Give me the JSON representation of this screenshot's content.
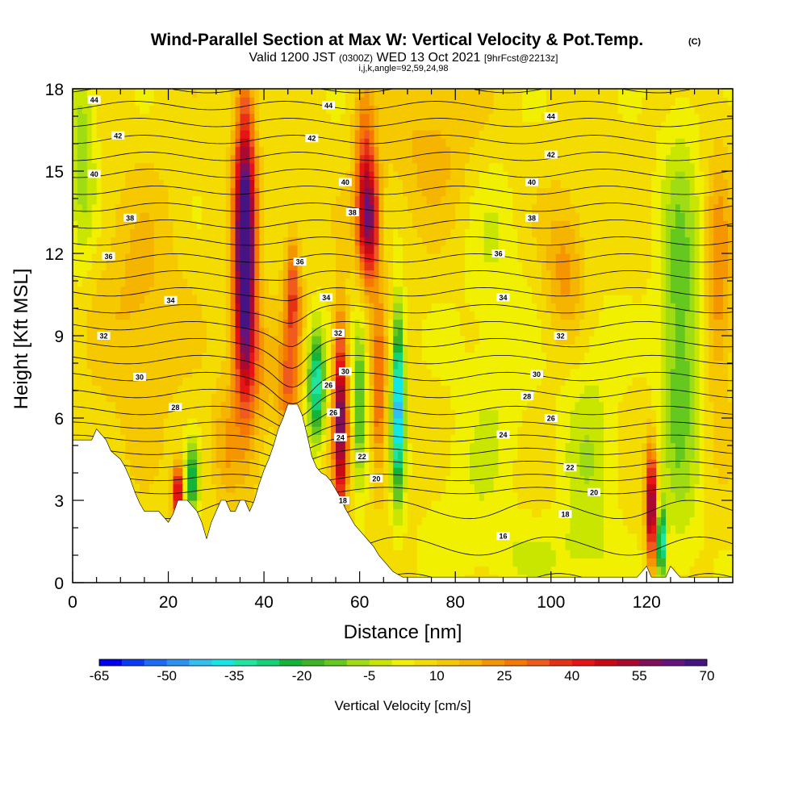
{
  "title": "Wind-Parallel Section at Max W: Vertical Velocity & Pot.Temp.",
  "copyright": "(C)",
  "subtitle": {
    "valid": "Valid 1200 JST",
    "zulu": "(0300Z)",
    "date": "WED 13 Oct 2021",
    "forecast": "[9hrFcst@2213z]",
    "params": "i,j,k,angle=92,59,24,98"
  },
  "chart_data": {
    "type": "heatmap",
    "xlabel": "Distance [nm]",
    "ylabel": "Height [Kft MSL]",
    "xlim": [
      0,
      138
    ],
    "ylim": [
      0,
      18
    ],
    "x_ticks": [
      "0",
      "20",
      "40",
      "60",
      "80",
      "100",
      "120"
    ],
    "y_ticks": [
      "0",
      "3",
      "6",
      "9",
      "12",
      "15",
      "18"
    ],
    "colorbar": {
      "label": "Vertical Velocity [cm/s]",
      "min": -65,
      "max": 70,
      "step": 5,
      "tick_labels": [
        "-65",
        "-50",
        "-35",
        "-20",
        "-5",
        "10",
        "25",
        "40",
        "55",
        "70"
      ],
      "colors": [
        "#0000f0",
        "#0a3cf5",
        "#1e6cf5",
        "#2c94f0",
        "#32c0f0",
        "#14e6e6",
        "#1ee6a0",
        "#14d278",
        "#14b43c",
        "#3cb428",
        "#64c81e",
        "#a0dc14",
        "#c8e600",
        "#f0f000",
        "#f5dc00",
        "#f5c800",
        "#f5b400",
        "#f59600",
        "#f57800",
        "#f05a1e",
        "#e63214",
        "#e61414",
        "#c80a14",
        "#aa0a32",
        "#820f5a",
        "#64147c",
        "#461482"
      ]
    },
    "terrain": [
      [
        0,
        5.2
      ],
      [
        2,
        5.2
      ],
      [
        4,
        5.2
      ],
      [
        5,
        5.6
      ],
      [
        7,
        5.2
      ],
      [
        8,
        4.8
      ],
      [
        10,
        4.5
      ],
      [
        11,
        4.2
      ],
      [
        12,
        3.8
      ],
      [
        13,
        3.3
      ],
      [
        14,
        2.9
      ],
      [
        15,
        2.6
      ],
      [
        17,
        2.6
      ],
      [
        18,
        2.6
      ],
      [
        20,
        2.2
      ],
      [
        21,
        2.5
      ],
      [
        22,
        3.0
      ],
      [
        24,
        3.0
      ],
      [
        26,
        2.6
      ],
      [
        27,
        2.2
      ],
      [
        28,
        1.6
      ],
      [
        29,
        2.2
      ],
      [
        30,
        2.6
      ],
      [
        31,
        3.0
      ],
      [
        32,
        3.0
      ],
      [
        33,
        2.6
      ],
      [
        34,
        2.6
      ],
      [
        35,
        3.0
      ],
      [
        36,
        3.0
      ],
      [
        37,
        2.6
      ],
      [
        38,
        3.0
      ],
      [
        39,
        3.6
      ],
      [
        40,
        4.1
      ],
      [
        41,
        4.5
      ],
      [
        42,
        5.0
      ],
      [
        43,
        5.6
      ],
      [
        44,
        6.0
      ],
      [
        45,
        6.5
      ],
      [
        47,
        6.5
      ],
      [
        48,
        6.1
      ],
      [
        49,
        5.4
      ],
      [
        50,
        4.6
      ],
      [
        51,
        4.2
      ],
      [
        52,
        4.0
      ],
      [
        53,
        3.9
      ],
      [
        54,
        3.7
      ],
      [
        55,
        3.4
      ],
      [
        56,
        3.1
      ],
      [
        57,
        2.7
      ],
      [
        58,
        2.4
      ],
      [
        59,
        2.1
      ],
      [
        60,
        1.9
      ],
      [
        61,
        1.7
      ],
      [
        62,
        1.5
      ],
      [
        63,
        1.3
      ],
      [
        64,
        1.0
      ],
      [
        65,
        0.8
      ],
      [
        66,
        0.6
      ],
      [
        67,
        0.4
      ],
      [
        69,
        0.2
      ],
      [
        72,
        0.2
      ],
      [
        80,
        0.2
      ],
      [
        100,
        0.2
      ],
      [
        118,
        0.2
      ],
      [
        119,
        0.4
      ],
      [
        120,
        0.6
      ],
      [
        121,
        0.2
      ],
      [
        124,
        0.2
      ],
      [
        125,
        0.6
      ],
      [
        126,
        0.4
      ],
      [
        127,
        0.2
      ],
      [
        138,
        0.2
      ]
    ],
    "theta_levels": [
      16,
      17,
      18,
      19,
      20,
      21,
      22,
      23,
      24,
      25,
      26,
      27,
      28,
      29,
      30,
      31,
      32,
      33,
      34,
      35,
      36,
      37,
      38,
      39,
      40,
      41,
      42,
      43,
      44,
      45
    ],
    "theta_labels": [
      {
        "text": "44",
        "x": 4.5,
        "y": 17.6
      },
      {
        "text": "42",
        "x": 9.5,
        "y": 16.3
      },
      {
        "text": "40",
        "x": 4.5,
        "y": 14.9
      },
      {
        "text": "38",
        "x": 12,
        "y": 13.3
      },
      {
        "text": "36",
        "x": 7.5,
        "y": 11.9
      },
      {
        "text": "34",
        "x": 20.5,
        "y": 10.3
      },
      {
        "text": "32",
        "x": 6.5,
        "y": 9.0
      },
      {
        "text": "30",
        "x": 14,
        "y": 7.5
      },
      {
        "text": "28",
        "x": 21.5,
        "y": 6.4
      },
      {
        "text": "44",
        "x": 53.5,
        "y": 17.4
      },
      {
        "text": "42",
        "x": 50,
        "y": 16.2
      },
      {
        "text": "40",
        "x": 57,
        "y": 14.6
      },
      {
        "text": "38",
        "x": 58.5,
        "y": 13.5
      },
      {
        "text": "36",
        "x": 47.5,
        "y": 11.7
      },
      {
        "text": "34",
        "x": 53,
        "y": 10.4
      },
      {
        "text": "32",
        "x": 55.5,
        "y": 9.1
      },
      {
        "text": "30",
        "x": 57,
        "y": 7.7
      },
      {
        "text": "26",
        "x": 53.5,
        "y": 7.2
      },
      {
        "text": "26",
        "x": 54.5,
        "y": 6.2
      },
      {
        "text": "24",
        "x": 56,
        "y": 5.3
      },
      {
        "text": "22",
        "x": 60.5,
        "y": 4.6
      },
      {
        "text": "20",
        "x": 63.5,
        "y": 3.8
      },
      {
        "text": "18",
        "x": 56.5,
        "y": 3.0
      },
      {
        "text": "44",
        "x": 100,
        "y": 17.0
      },
      {
        "text": "42",
        "x": 100,
        "y": 15.6
      },
      {
        "text": "40",
        "x": 96,
        "y": 14.6
      },
      {
        "text": "38",
        "x": 96,
        "y": 13.3
      },
      {
        "text": "36",
        "x": 89,
        "y": 12.0
      },
      {
        "text": "34",
        "x": 90,
        "y": 10.4
      },
      {
        "text": "32",
        "x": 102,
        "y": 9.0
      },
      {
        "text": "30",
        "x": 97,
        "y": 7.6
      },
      {
        "text": "28",
        "x": 95,
        "y": 6.8
      },
      {
        "text": "26",
        "x": 100,
        "y": 6.0
      },
      {
        "text": "24",
        "x": 90,
        "y": 5.4
      },
      {
        "text": "22",
        "x": 104,
        "y": 4.2
      },
      {
        "text": "20",
        "x": 109,
        "y": 3.3
      },
      {
        "text": "18",
        "x": 103,
        "y": 2.5
      },
      {
        "text": "16",
        "x": 90,
        "y": 1.7
      }
    ]
  }
}
